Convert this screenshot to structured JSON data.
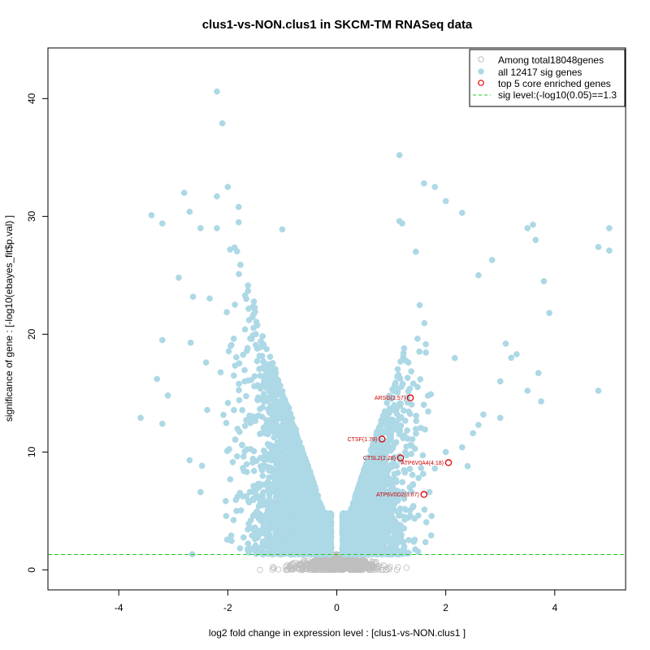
{
  "chart_data": {
    "type": "scatter",
    "title": "clus1-vs-NON.clus1 in SKCM-TM RNASeq data",
    "xlabel": "log2 fold change in expression level : [clus1-vs-NON.clus1 ]",
    "ylabel": "significance of gene : [-log10(ebayes_fit$p.val) ]",
    "xlim": [
      -5.3,
      5.3
    ],
    "ylim": [
      -1.7,
      44.3
    ],
    "x_ticks": [
      -4,
      -2,
      0,
      2,
      4
    ],
    "y_ticks": [
      0,
      10,
      20,
      30,
      40
    ],
    "sig_level": 1.3,
    "colors": {
      "sig": "#add8e6",
      "nonsig": "#bebebe",
      "core": "#dd0000",
      "sig_line": "#22cc22"
    },
    "legend": {
      "position": "top-right",
      "entries": [
        {
          "label": "Among total18048genes",
          "symbol": "open-circle-gray"
        },
        {
          "label": "all 12417 sig genes",
          "symbol": "filled-circle-lightblue"
        },
        {
          "label": "top 5 core enriched genes",
          "symbol": "open-circle-red"
        },
        {
          "label": "sig level:(-log10(0.05)==1.3",
          "symbol": "dashed-line-green"
        }
      ]
    },
    "core_genes": [
      {
        "label": "ARSG(2.57)",
        "x": 1.35,
        "y": 14.6
      },
      {
        "label": "CTSF(1.79)",
        "x": 0.83,
        "y": 11.1
      },
      {
        "label": "CTSL2(2.28)",
        "x": 1.17,
        "y": 9.5
      },
      {
        "label": "ATP6V0A4(4.18)",
        "x": 2.05,
        "y": 9.1
      },
      {
        "label": "ATP6V0D2(3.07)",
        "x": 1.6,
        "y": 6.4
      }
    ],
    "sig_points_outliers": [
      [
        -2.2,
        40.6
      ],
      [
        -2.1,
        37.9
      ],
      [
        -2.0,
        32.5
      ],
      [
        -2.2,
        31.7
      ],
      [
        -2.8,
        32.0
      ],
      [
        -3.4,
        30.1
      ],
      [
        -3.2,
        29.4
      ],
      [
        -2.7,
        30.4
      ],
      [
        -2.2,
        29.0
      ],
      [
        -1.8,
        30.8
      ],
      [
        -1.8,
        29.5
      ],
      [
        -1.0,
        28.9
      ],
      [
        -2.5,
        29.0
      ],
      [
        -2.9,
        24.8
      ],
      [
        -3.2,
        19.5
      ],
      [
        -3.3,
        16.2
      ],
      [
        -3.1,
        14.8
      ],
      [
        -3.2,
        12.4
      ],
      [
        -3.6,
        12.9
      ],
      [
        -2.7,
        9.3
      ],
      [
        -2.5,
        6.6
      ],
      [
        1.15,
        35.2
      ],
      [
        1.8,
        32.5
      ],
      [
        1.6,
        32.8
      ],
      [
        2.0,
        31.3
      ],
      [
        1.15,
        29.6
      ],
      [
        2.3,
        30.3
      ],
      [
        1.2,
        29.4
      ],
      [
        3.6,
        29.3
      ],
      [
        3.5,
        29.0
      ],
      [
        5.0,
        29.0
      ],
      [
        3.65,
        28.0
      ],
      [
        4.8,
        27.4
      ],
      [
        5.0,
        27.1
      ],
      [
        2.85,
        26.3
      ],
      [
        1.45,
        27.0
      ],
      [
        3.8,
        24.5
      ],
      [
        2.6,
        25.0
      ],
      [
        3.9,
        21.8
      ],
      [
        3.1,
        19.2
      ],
      [
        3.2,
        18.0
      ],
      [
        3.3,
        18.3
      ],
      [
        3.0,
        16.0
      ],
      [
        3.7,
        16.7
      ],
      [
        3.5,
        15.2
      ],
      [
        3.75,
        14.3
      ],
      [
        4.8,
        15.2
      ],
      [
        3.0,
        12.9
      ],
      [
        2.6,
        12.3
      ],
      [
        2.5,
        11.6
      ],
      [
        2.3,
        10.4
      ],
      [
        2.0,
        10.0
      ],
      [
        2.4,
        8.8
      ],
      [
        1.8,
        8.6
      ],
      [
        1.5,
        7.8
      ],
      [
        1.7,
        6.6
      ]
    ],
    "sig_clouds": [
      {
        "side": "left",
        "count": 3000,
        "cx": -1.2,
        "spread": 0.75,
        "ymax": 29
      },
      {
        "side": "right",
        "count": 2200,
        "cx": 0.95,
        "spread": 0.6,
        "ymax": 27
      }
    ],
    "nonsig_cloud": {
      "count": 700,
      "xspread": 0.9,
      "ymax": 1.3
    }
  }
}
